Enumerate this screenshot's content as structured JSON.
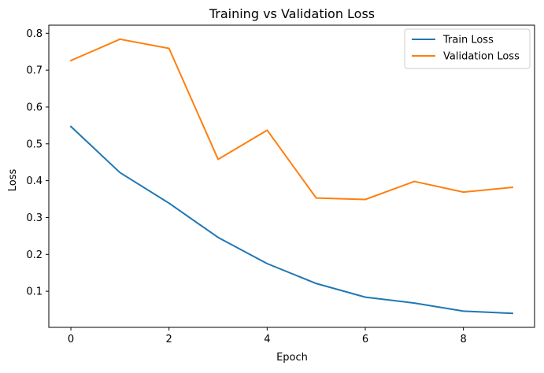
{
  "chart_data": {
    "type": "line",
    "title": "Training vs Validation Loss",
    "xlabel": "Epoch",
    "ylabel": "Loss",
    "x": [
      0,
      1,
      2,
      3,
      4,
      5,
      6,
      7,
      8,
      9
    ],
    "series": [
      {
        "name": "Train Loss",
        "color": "#1f77b4",
        "values": [
          0.547,
          0.422,
          0.339,
          0.246,
          0.175,
          0.121,
          0.084,
          0.068,
          0.046,
          0.04
        ]
      },
      {
        "name": "Validation Loss",
        "color": "#ff7f0e",
        "values": [
          0.726,
          0.784,
          0.759,
          0.458,
          0.537,
          0.353,
          0.349,
          0.398,
          0.369,
          0.382
        ]
      }
    ],
    "xlim": [
      -0.45,
      9.45
    ],
    "ylim": [
      0.002,
      0.822
    ],
    "x_ticks": [
      0,
      2,
      4,
      6,
      8
    ],
    "y_ticks": [
      0.1,
      0.2,
      0.3,
      0.4,
      0.5,
      0.6,
      0.7,
      0.8
    ],
    "x_tick_labels": [
      "0",
      "2",
      "4",
      "6",
      "8"
    ],
    "y_tick_labels": [
      "0.1",
      "0.2",
      "0.3",
      "0.4",
      "0.5",
      "0.6",
      "0.7",
      "0.8"
    ],
    "grid": false,
    "legend_position": "top-right"
  }
}
